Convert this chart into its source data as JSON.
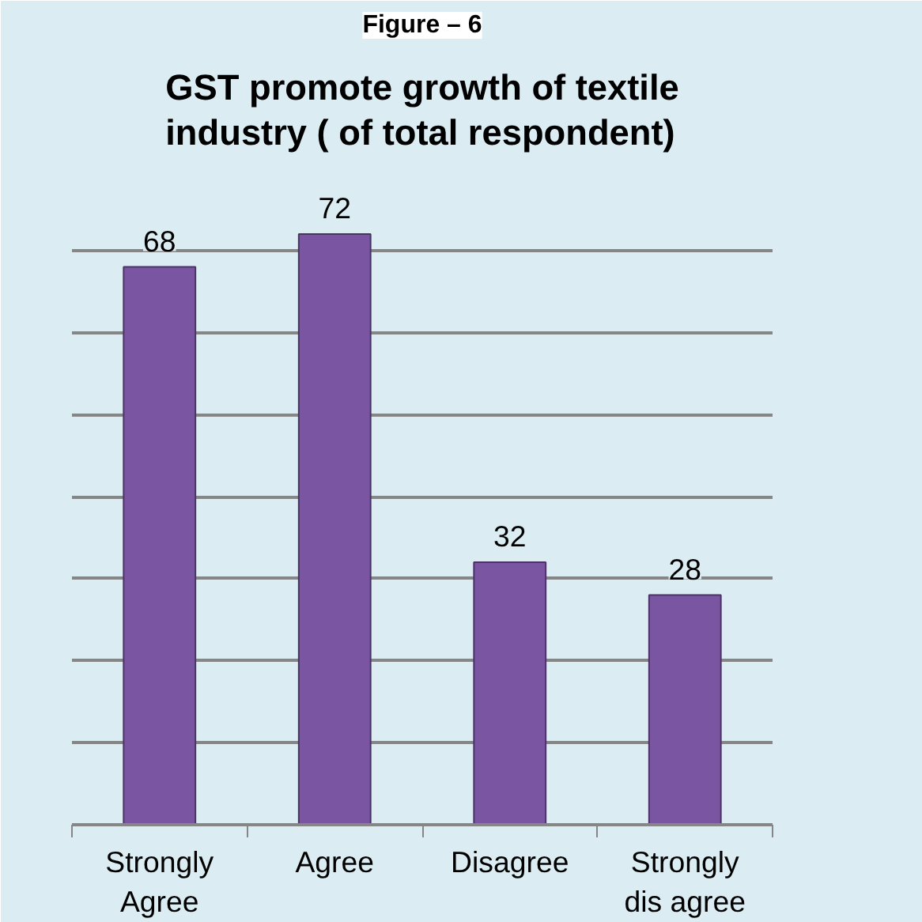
{
  "chart_data": {
    "type": "bar",
    "title": "GST promote growth of textile\nindustry ( of total respondent)",
    "annotations": [
      "Figure – 6"
    ],
    "categories": [
      "Strongly Agree",
      "Agree",
      "Disagree",
      "Strongly dis agree"
    ],
    "values": [
      68,
      72,
      32,
      28
    ],
    "color": "#7a56a2",
    "data_labels": true,
    "ylim": [
      0,
      80
    ],
    "yticks": [
      {
        "value": 10,
        "label": null
      },
      {
        "value": 20,
        "label": null
      },
      {
        "value": 30,
        "label": null
      },
      {
        "value": 40,
        "label": null
      },
      {
        "value": 50,
        "label": null
      },
      {
        "value": 60,
        "label": null
      },
      {
        "value": 70,
        "label": null
      },
      {
        "value": 80,
        "label": null
      }
    ],
    "grid": "y",
    "tick_labels": "x"
  }
}
